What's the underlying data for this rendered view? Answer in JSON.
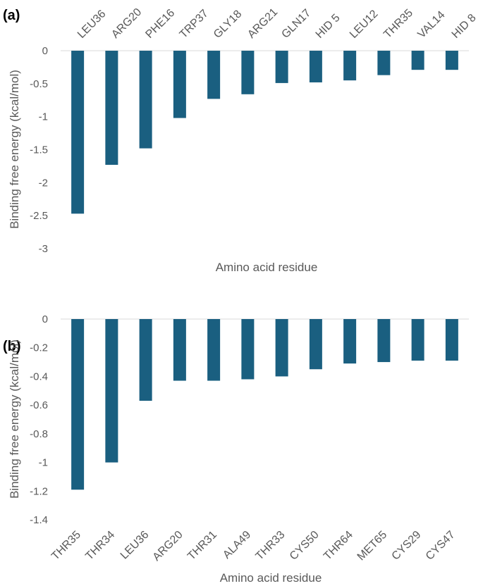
{
  "chart_data": [
    {
      "type": "bar",
      "panel_label": "(a)",
      "title": "",
      "xlabel": "Amino acid residue",
      "ylabel": "Binding free energy  (kcal/mol)",
      "categories": [
        "LEU36",
        "ARG20",
        "PHE16",
        "TRP37",
        "GLY18",
        "ARG21",
        "GLN17",
        "HID 5",
        "LEU12",
        "THR35",
        "VAL14",
        "HID 8"
      ],
      "values": [
        -2.47,
        -1.73,
        -1.48,
        -1.02,
        -0.73,
        -0.66,
        -0.49,
        -0.48,
        -0.45,
        -0.37,
        -0.29,
        -0.29
      ],
      "yticks": [
        0,
        -0.5,
        -1,
        -1.5,
        -2,
        -2.5,
        -3
      ],
      "ytick_labels": [
        "0",
        "-0.5",
        "-1",
        "-1.5",
        "-2",
        "-2.5",
        "-3"
      ],
      "ylim": [
        -3,
        0
      ],
      "category_axis_position": "top",
      "grid": false,
      "color": "#1a5f80"
    },
    {
      "type": "bar",
      "panel_label": "(b)",
      "title": "",
      "xlabel": "Amino acid residue",
      "ylabel": "Binding free energy  (kcal/mol)",
      "categories": [
        "THR35",
        "THR34",
        "LEU36",
        "ARG20",
        "THR31",
        "ALA49",
        "THR33",
        "CYS50",
        "THR64",
        "MET65",
        "CYS29",
        "CYS47"
      ],
      "values": [
        -1.19,
        -1.0,
        -0.57,
        -0.43,
        -0.43,
        -0.42,
        -0.4,
        -0.35,
        -0.31,
        -0.3,
        -0.29,
        -0.29
      ],
      "yticks": [
        0,
        -0.2,
        -0.4,
        -0.6,
        -0.8,
        -1,
        -1.2,
        -1.4
      ],
      "ytick_labels": [
        "0",
        "-0.2",
        "-0.4",
        "-0.6",
        "-0.8",
        "-1",
        "-1.2",
        "-1.4"
      ],
      "ylim": [
        -1.4,
        0
      ],
      "category_axis_position": "bottom",
      "grid": false,
      "color": "#1a5f80"
    }
  ]
}
